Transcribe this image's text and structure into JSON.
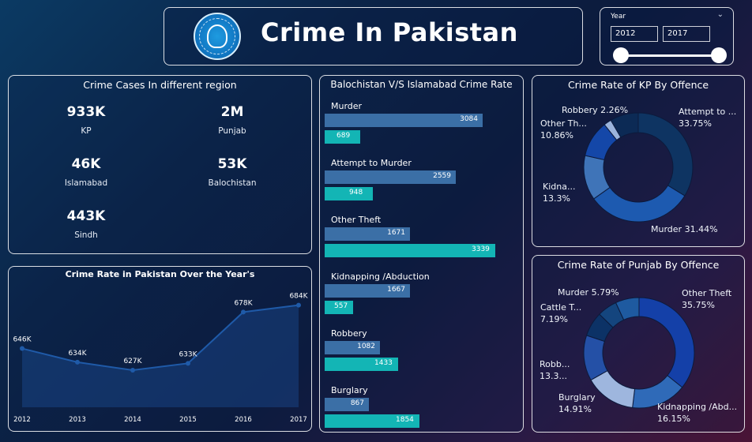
{
  "header": {
    "title": "Crime In Pakistan"
  },
  "slicer": {
    "label": "Year",
    "from": "2012",
    "to": "2017"
  },
  "regions": {
    "title": "Crime Cases In different region",
    "items": [
      {
        "value": "933K",
        "label": "KP"
      },
      {
        "value": "2M",
        "label": "Punjab"
      },
      {
        "value": "46K",
        "label": "Islamabad"
      },
      {
        "value": "53K",
        "label": "Balochistan"
      },
      {
        "value": "443K",
        "label": "Sindh"
      }
    ]
  },
  "trend": {
    "title": "Crime Rate in Pakistan Over the Year's",
    "chart_data": {
      "type": "area",
      "x": [
        "2012",
        "2013",
        "2014",
        "2015",
        "2016",
        "2017"
      ],
      "values": [
        646,
        634,
        627,
        633,
        678,
        684
      ],
      "labels": [
        "646K",
        "634K",
        "627K",
        "633K",
        "678K",
        "684K"
      ],
      "color": "#1f5aa8"
    }
  },
  "balochistan": {
    "title": "Balochistan V/S Islamabad Crime Rate",
    "chart_data": {
      "type": "bar",
      "categories": [
        "Murder",
        "Attempt to Murder",
        "Other Theft",
        "Kidnapping /Abduction",
        "Robbery",
        "Burglary"
      ],
      "series": [
        {
          "values": [
            3084,
            2559,
            1671,
            1667,
            1082,
            867
          ],
          "color": "#3b6fa6"
        },
        {
          "values": [
            689,
            948,
            3339,
            557,
            1433,
            1854
          ],
          "color": "#13b5b5"
        }
      ],
      "max": 3339
    }
  },
  "kp": {
    "title": "Crime Rate of KP By Offence",
    "chart_data": {
      "type": "pie",
      "slices": [
        {
          "label": "Attempt to ...",
          "pct": "33.75%",
          "value": 33.75,
          "color": "#0e3462"
        },
        {
          "label": "Murder",
          "pct": "31.44%",
          "value": 31.44,
          "color": "#1d5ab0"
        },
        {
          "label": "Kidna...",
          "pct": "13.3%",
          "value": 13.3,
          "color": "#3f74b8"
        },
        {
          "label": "Other Th...",
          "pct": "10.86%",
          "value": 10.86,
          "color": "#1447a8"
        },
        {
          "label": "Robbery",
          "pct": "2.26%",
          "value": 2.26,
          "color": "#9ab4dc"
        },
        {
          "label": "",
          "pct": "",
          "value": 8.39,
          "color": "#0c2a55"
        }
      ]
    }
  },
  "punjab": {
    "title": "Crime Rate of Punjab By Offence",
    "chart_data": {
      "type": "pie",
      "slices": [
        {
          "label": "Other Theft",
          "pct": "35.75%",
          "value": 35.75,
          "color": "#1440a8"
        },
        {
          "label": "Kidnapping /Abd...",
          "pct": "16.15%",
          "value": 16.15,
          "color": "#2f6ab8"
        },
        {
          "label": "Burglary",
          "pct": "14.91%",
          "value": 14.91,
          "color": "#9eb6de"
        },
        {
          "label": "Robb...",
          "pct": "13.3...",
          "value": 13.3,
          "color": "#2450a6"
        },
        {
          "label": "Cattle T...",
          "pct": "7.19%",
          "value": 7.19,
          "color": "#0c3266"
        },
        {
          "label": "Murder",
          "pct": "5.79%",
          "value": 5.79,
          "color": "#14457e"
        },
        {
          "label": "",
          "pct": "",
          "value": 6.91,
          "color": "#1e5aa0"
        }
      ]
    }
  }
}
